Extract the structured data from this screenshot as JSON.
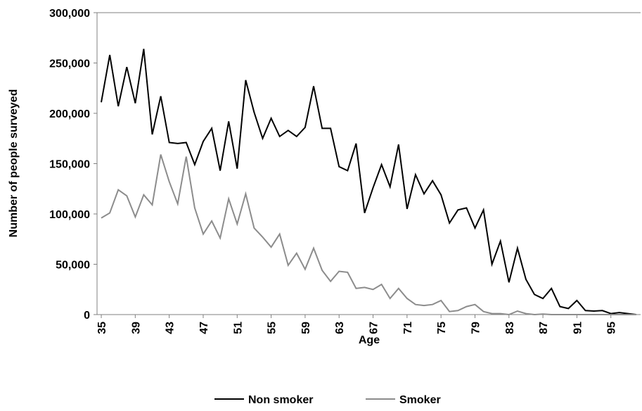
{
  "chart_data": {
    "type": "line",
    "x_label": "Age",
    "y_label": "Number of people surveyed",
    "x": [
      35,
      36,
      37,
      38,
      39,
      40,
      41,
      42,
      43,
      44,
      45,
      46,
      47,
      48,
      49,
      50,
      51,
      52,
      53,
      54,
      55,
      56,
      57,
      58,
      59,
      60,
      61,
      62,
      63,
      64,
      65,
      66,
      67,
      68,
      69,
      70,
      71,
      72,
      73,
      74,
      75,
      76,
      77,
      78,
      79,
      80,
      81,
      82,
      83,
      84,
      85,
      86,
      87,
      88,
      89,
      90,
      91,
      92,
      93,
      94,
      95,
      96,
      97,
      98
    ],
    "series": [
      {
        "name": "Non smoker",
        "color": "#000000",
        "values": [
          211000,
          258000,
          207000,
          246000,
          210000,
          264000,
          179000,
          217000,
          171000,
          170000,
          171000,
          149000,
          172000,
          185000,
          143000,
          192000,
          145000,
          233000,
          201000,
          175000,
          195000,
          177000,
          183000,
          177000,
          186000,
          227000,
          185000,
          185000,
          147000,
          143000,
          170000,
          101000,
          126000,
          149000,
          127000,
          169000,
          105000,
          139000,
          120000,
          133000,
          119000,
          91000,
          104000,
          106000,
          86000,
          104000,
          50000,
          73000,
          32000,
          66000,
          35000,
          20000,
          16000,
          26000,
          8000,
          6000,
          14000,
          4000,
          3500,
          4000,
          1000,
          2000,
          1000,
          0
        ]
      },
      {
        "name": "Smoker",
        "color": "#8c8c8c",
        "values": [
          96000,
          101000,
          124000,
          118000,
          97000,
          119000,
          109000,
          159000,
          132000,
          110000,
          157000,
          106000,
          80000,
          93000,
          76000,
          115000,
          90000,
          120000,
          86000,
          77000,
          67000,
          80000,
          49000,
          61000,
          45000,
          66000,
          44000,
          33000,
          43000,
          42000,
          26000,
          27000,
          25000,
          30000,
          16000,
          26000,
          16000,
          10000,
          9000,
          10000,
          14000,
          3000,
          4000,
          8000,
          10000,
          3000,
          1000,
          1000,
          0,
          3500,
          1000,
          0,
          500,
          0,
          0,
          0,
          0,
          0,
          0,
          0,
          0,
          0,
          0,
          0
        ]
      }
    ],
    "xlim": [
      34.5,
      98.5
    ],
    "xticks": [
      35,
      39,
      43,
      47,
      51,
      55,
      59,
      63,
      67,
      71,
      75,
      79,
      83,
      87,
      91,
      95
    ],
    "ylim": [
      0,
      300000
    ],
    "yticks": [
      0,
      {
        "value": 50000,
        "label": "50,000"
      },
      {
        "value": 100000,
        "label": "100,000"
      },
      {
        "value": 150000,
        "label": "150,000"
      },
      {
        "value": 200000,
        "label": "200,000"
      },
      {
        "value": 250000,
        "label": "250,000"
      },
      {
        "value": 300000,
        "label": "300,000"
      }
    ],
    "legend": "bottom"
  }
}
